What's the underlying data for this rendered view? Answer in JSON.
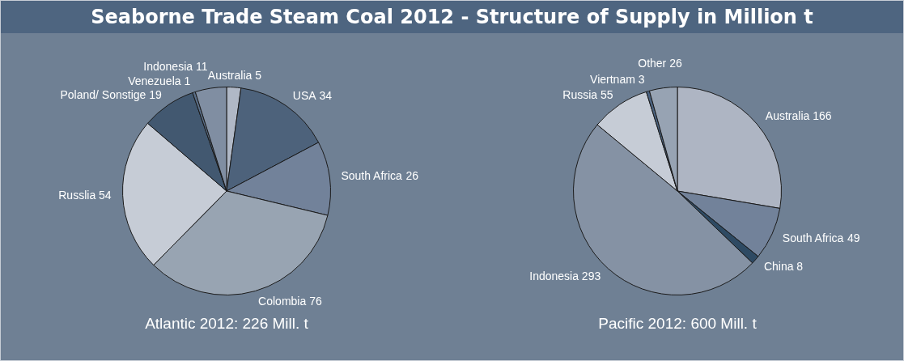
{
  "chart_data": [
    {
      "type": "pie",
      "title": "Seaborne Trade Steam Coal 2012 - Structure of Supply in Million t",
      "subtitle": "Atlantic 2012: 226 Mill. t",
      "categories": [
        "Australia",
        "USA",
        "South Africa",
        "Colombia",
        "Russlia",
        "Poland/ Sonstige",
        "Venezuela",
        "Indonesia"
      ],
      "values": [
        5,
        34,
        26,
        76,
        54,
        19,
        1,
        11
      ],
      "colors": [
        "#b0b8c6",
        "#4d627b",
        "#72829a",
        "#98a4b2",
        "#c6ccd6",
        "#425870",
        "#5a6e87",
        "#808ea2"
      ],
      "data_labels": true
    },
    {
      "type": "pie",
      "subtitle": "Pacific 2012: 600 Mill. t",
      "categories": [
        "Australia",
        "South Africa",
        "China",
        "Indonesia",
        "Russia",
        "Viertnam",
        "Other"
      ],
      "values": [
        166,
        49,
        8,
        293,
        55,
        3,
        26
      ],
      "colors": [
        "#aeb5c3",
        "#72829a",
        "#2e4a63",
        "#8592a4",
        "#c6ccd6",
        "#4a6280",
        "#97a3b3"
      ],
      "data_labels": true
    }
  ]
}
